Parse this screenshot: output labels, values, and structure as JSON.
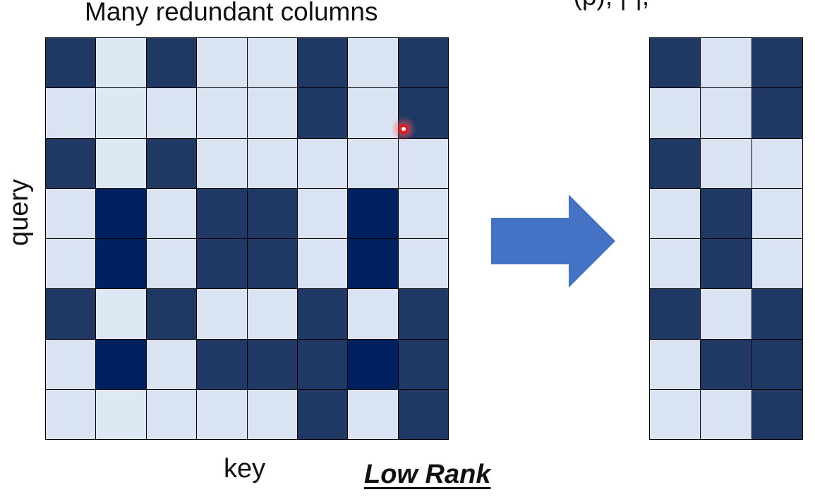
{
  "title": "Many redundant columns",
  "clipped_text": "· (p), |·|, ",
  "y_axis_label": "query",
  "x_axis_label": "key",
  "low_rank_label": "Low Rank",
  "colors": {
    "light": "#dae3f1",
    "dark": "#203864",
    "darker": "#00205f",
    "arrow": "#4472c4",
    "cursor": "#e31b1b"
  },
  "left_matrix": [
    [
      1,
      0,
      1,
      0,
      0,
      1,
      0,
      1
    ],
    [
      0,
      0,
      0,
      0,
      0,
      1,
      0,
      1
    ],
    [
      1,
      0,
      1,
      0,
      0,
      0,
      0,
      0
    ],
    [
      0,
      2,
      0,
      1,
      1,
      0,
      2,
      0
    ],
    [
      0,
      2,
      0,
      1,
      1,
      0,
      2,
      0
    ],
    [
      1,
      0,
      1,
      0,
      0,
      1,
      0,
      1
    ],
    [
      0,
      2,
      0,
      1,
      1,
      1,
      2,
      1
    ],
    [
      0,
      0,
      0,
      0,
      0,
      1,
      0,
      1
    ]
  ],
  "right_matrix": [
    [
      1,
      0,
      1
    ],
    [
      0,
      0,
      1
    ],
    [
      1,
      0,
      0
    ],
    [
      0,
      1,
      0
    ],
    [
      0,
      1,
      0
    ],
    [
      1,
      0,
      1
    ],
    [
      0,
      1,
      1
    ],
    [
      0,
      0,
      1
    ]
  ]
}
